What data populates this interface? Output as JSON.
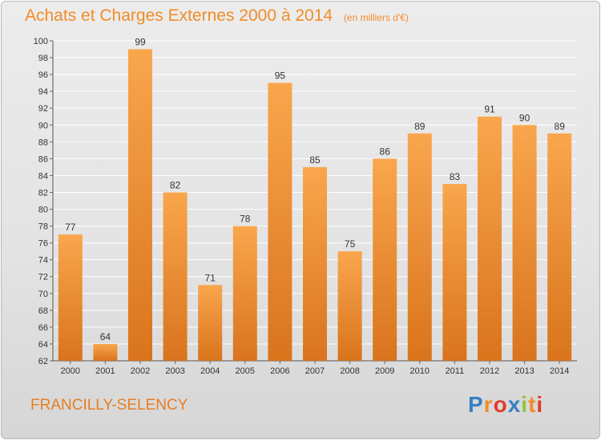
{
  "chart_data": {
    "type": "bar",
    "title": "Achats et Charges Externes 2000 à 2014",
    "subtitle": "(en milliers d'€)",
    "xlabel": "",
    "ylabel": "",
    "categories": [
      "2000",
      "2001",
      "2002",
      "2003",
      "2004",
      "2005",
      "2006",
      "2007",
      "2008",
      "2009",
      "2010",
      "2011",
      "2012",
      "2013",
      "2014"
    ],
    "values": [
      77,
      64,
      99,
      82,
      71,
      78,
      95,
      85,
      75,
      86,
      89,
      83,
      91,
      90,
      89
    ],
    "ylim": [
      62,
      100
    ],
    "yticks": [
      62,
      64,
      66,
      68,
      70,
      72,
      74,
      76,
      78,
      80,
      82,
      84,
      86,
      88,
      90,
      92,
      94,
      96,
      98,
      100
    ],
    "grid": true,
    "legend": "none",
    "bar_color": "#f28c28"
  },
  "footer": {
    "location": "FRANCILLY-SELENCY"
  },
  "logo": {
    "text": "Proxiti",
    "colors": [
      "#3a7fc1",
      "#f28c28",
      "#e23a2e",
      "#3a7fc1",
      "#8dc63f",
      "#f28c28",
      "#e23a2e"
    ]
  }
}
